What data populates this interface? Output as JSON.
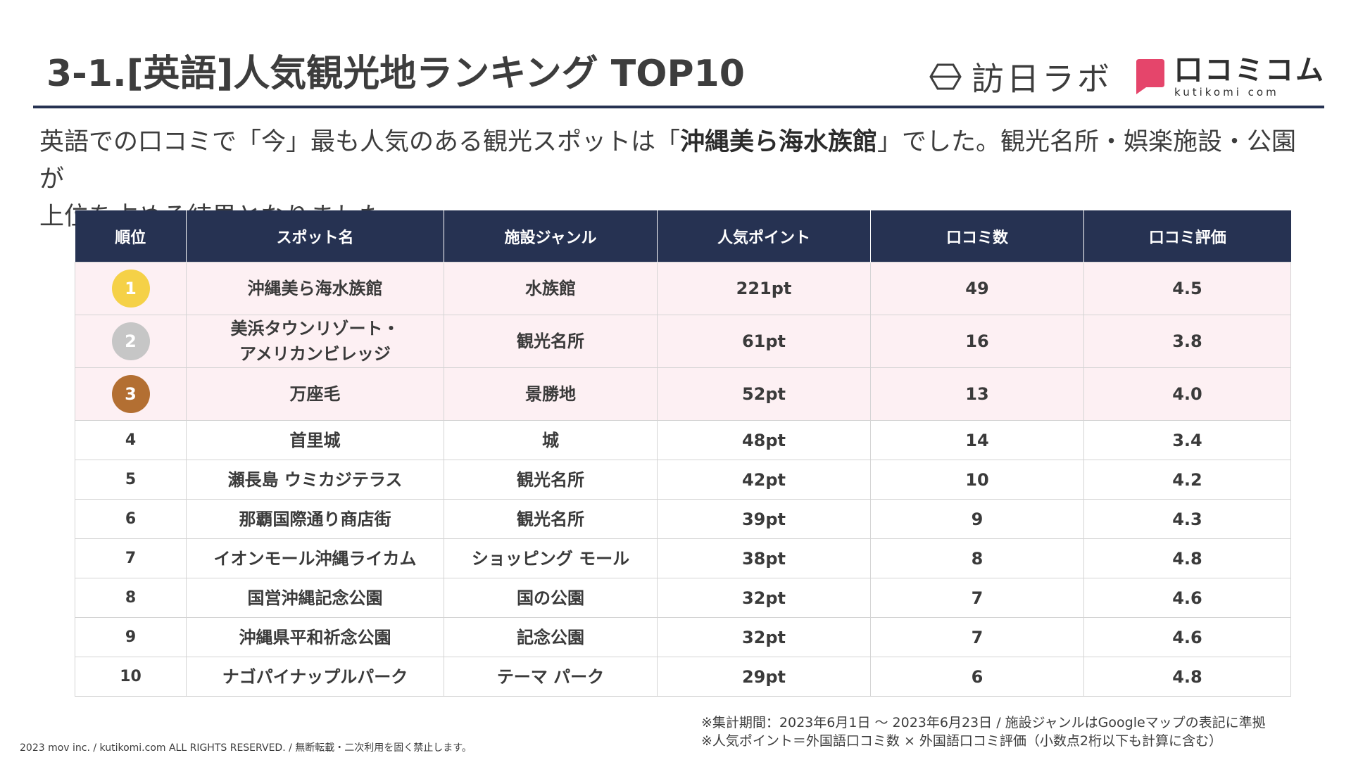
{
  "header": {
    "title": "3-1.[英語]人気観光地ランキング TOP10",
    "logos": {
      "houjin_lab": "訪日ラボ",
      "kutikomi_main": "口コミコム",
      "kutikomi_sub": "kutikomi com",
      "brand_pink": "#e5456b"
    }
  },
  "lead": {
    "prefix": "英語での口コミで「今」最も人気のある観光スポットは「",
    "highlight": "沖縄美ら海水族館",
    "suffix_line1": "」でした。観光名所・娯楽施設・公園が",
    "line2": "上位を占める結果となりました。"
  },
  "table": {
    "headers": [
      "順位",
      "スポット名",
      "施設ジャンル",
      "人気ポイント",
      "口コミ数",
      "口コミ評価"
    ],
    "top_rows": [
      {
        "rank": "1",
        "medal_color": "#f5d147",
        "name_line1": "沖縄美ら海水族館",
        "name_line2": "",
        "genre": "水族館",
        "points": "221pt",
        "reviews": "49",
        "rating": "4.5"
      },
      {
        "rank": "2",
        "medal_color": "#c6c6c6",
        "name_line1": "美浜タウンリゾート・",
        "name_line2": "アメリカンビレッジ",
        "genre": "観光名所",
        "points": "61pt",
        "reviews": "16",
        "rating": "3.8"
      },
      {
        "rank": "3",
        "medal_color": "#b36f32",
        "name_line1": "万座毛",
        "name_line2": "",
        "genre": "景勝地",
        "points": "52pt",
        "reviews": "13",
        "rating": "4.0"
      }
    ],
    "rows": [
      {
        "rank": "4",
        "name": "首里城",
        "genre": "城",
        "points": "48pt",
        "reviews": "14",
        "rating": "3.4"
      },
      {
        "rank": "5",
        "name": "瀬長島 ウミカジテラス",
        "genre": "観光名所",
        "points": "42pt",
        "reviews": "10",
        "rating": "4.2"
      },
      {
        "rank": "6",
        "name": "那覇国際通り商店街",
        "genre": "観光名所",
        "points": "39pt",
        "reviews": "9",
        "rating": "4.3"
      },
      {
        "rank": "7",
        "name": "イオンモール沖縄ライカム",
        "genre": "ショッピング モール",
        "points": "38pt",
        "reviews": "8",
        "rating": "4.8"
      },
      {
        "rank": "8",
        "name": "国営沖縄記念公園",
        "genre": "国の公園",
        "points": "32pt",
        "reviews": "7",
        "rating": "4.6"
      },
      {
        "rank": "9",
        "name": "沖縄県平和祈念公園",
        "genre": "記念公園",
        "points": "32pt",
        "reviews": "7",
        "rating": "4.6"
      },
      {
        "rank": "10",
        "name": "ナゴパイナップルパーク",
        "genre": "テーマ パーク",
        "points": "29pt",
        "reviews": "6",
        "rating": "4.8"
      }
    ]
  },
  "footnotes": {
    "line1": "※集計期間：2023年6月1日 〜 2023年6月23日 / 施設ジャンルはGoogleマップの表記に準拠",
    "line2": "※人気ポイント＝外国語口コミ数 × 外国語口コミ評価（小数点2桁以下も計算に含む）"
  },
  "copyright": "2023 mov inc. / kutikomi.com ALL RIGHTS RESERVED. / 無断転載・二次利用を固く禁止します。"
}
